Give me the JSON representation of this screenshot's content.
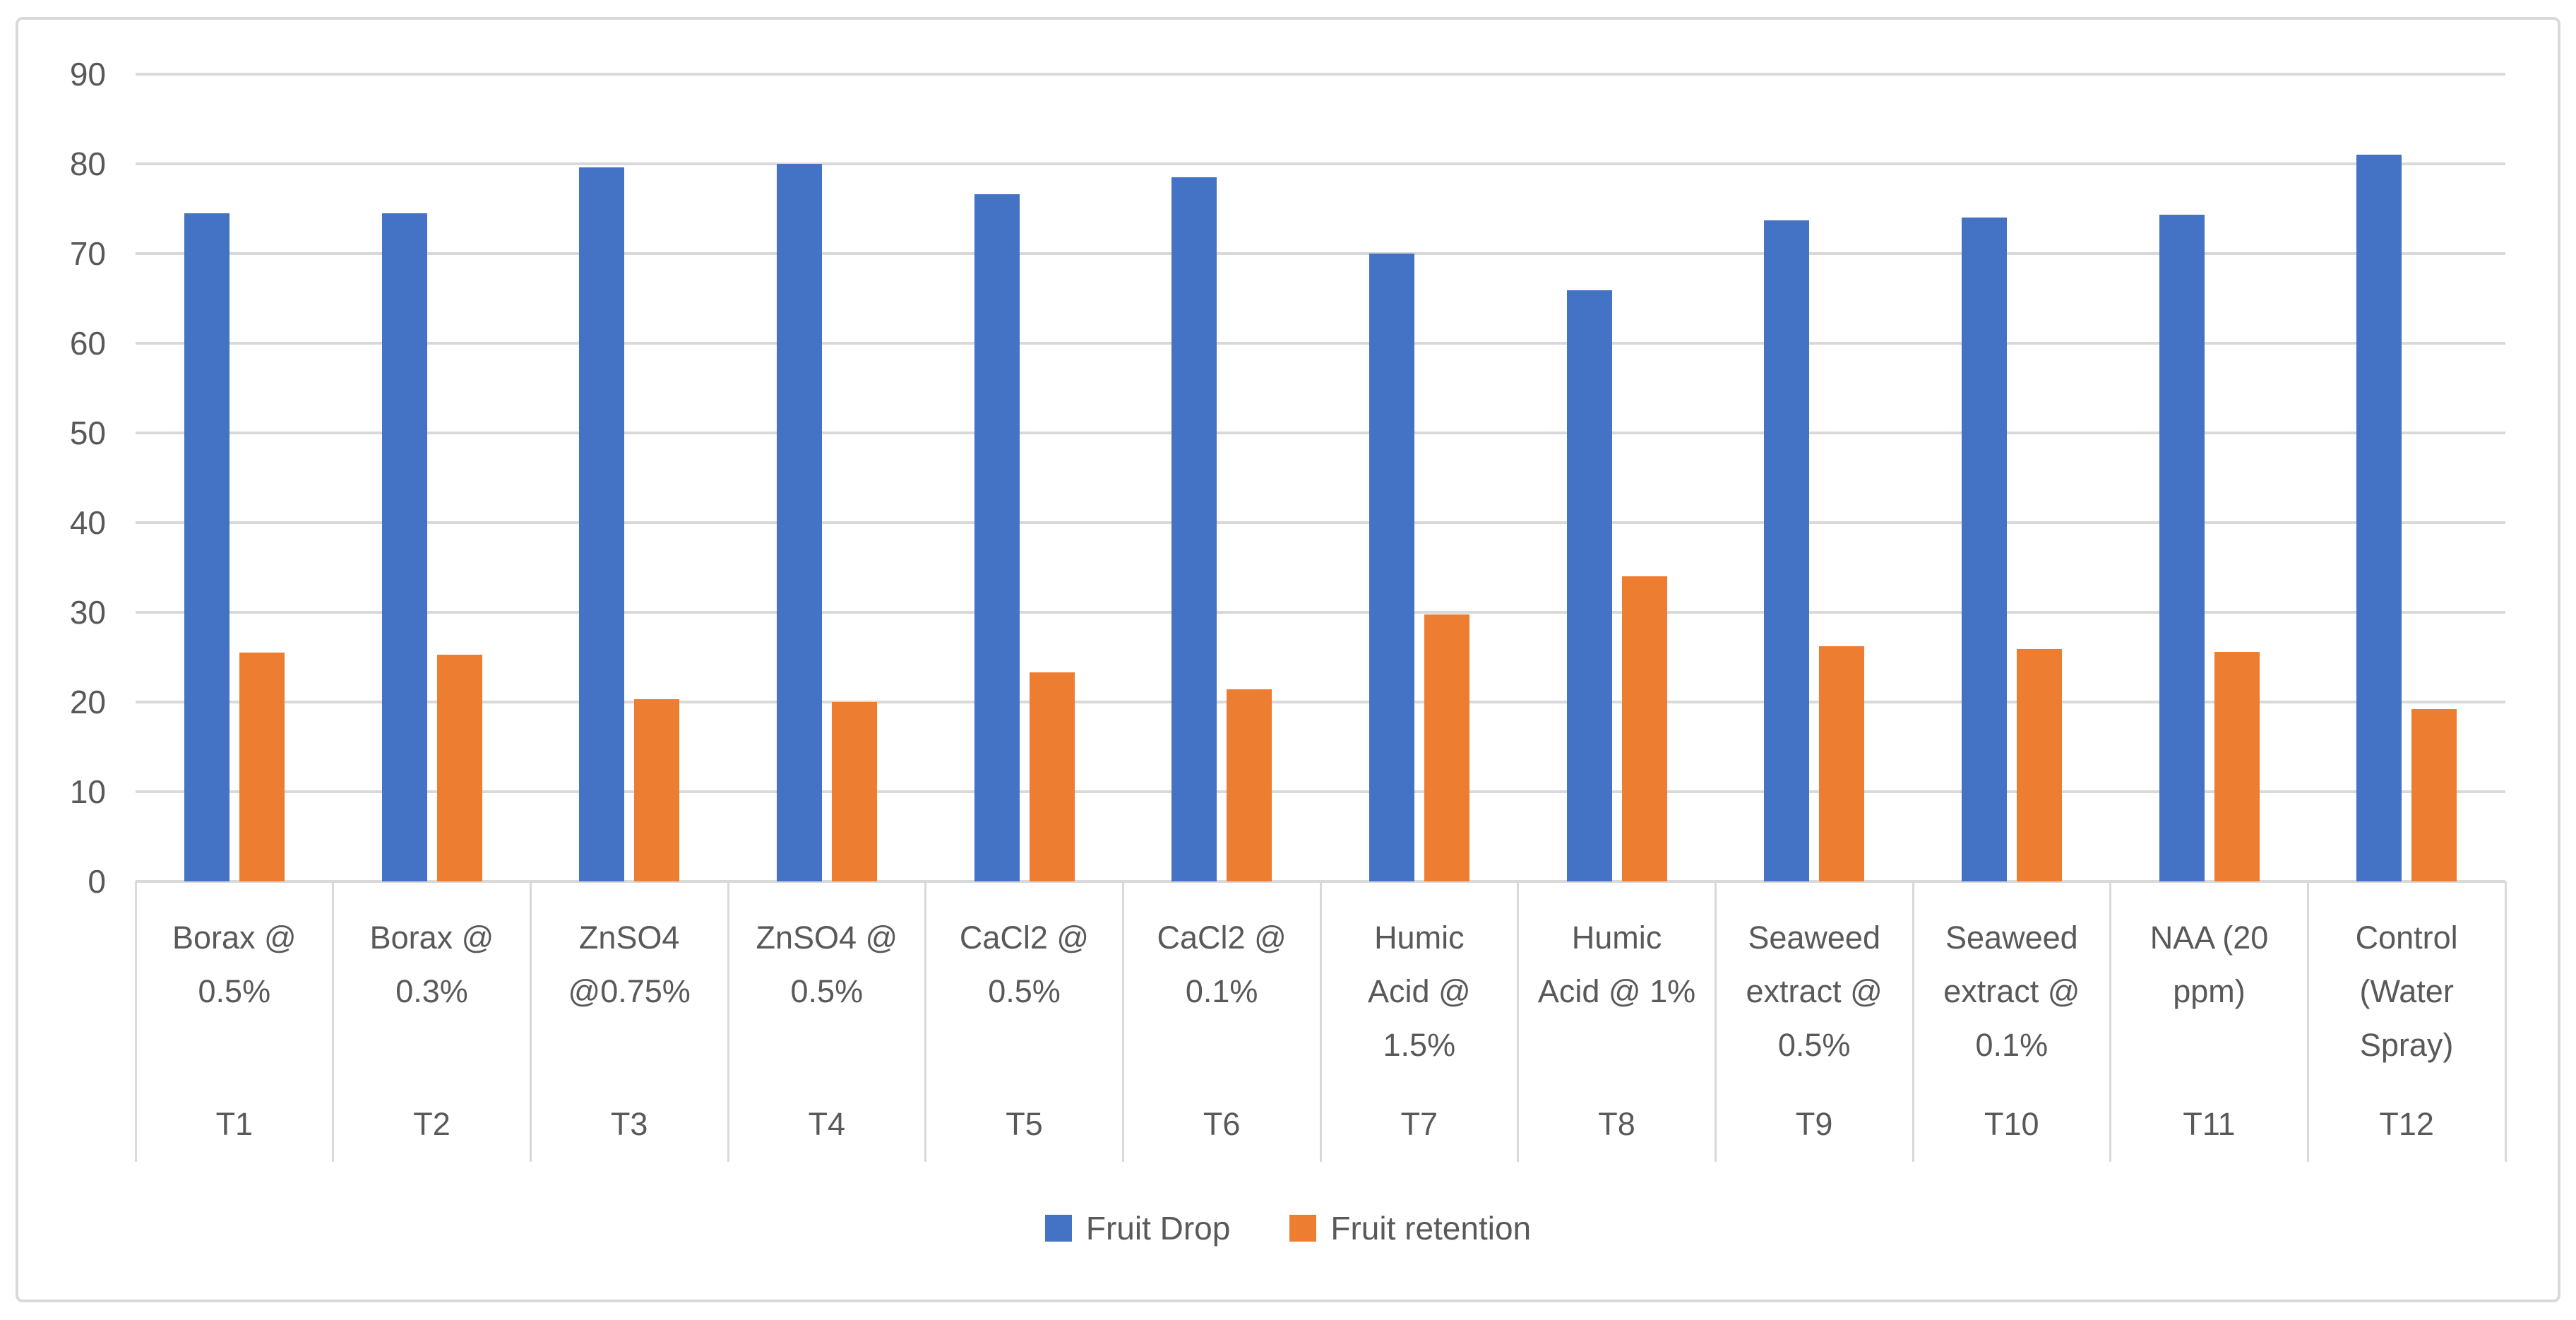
{
  "chart": {
    "background_color": "#FFFFFF",
    "frame_border_color": "#D9D9D9",
    "gridline_color": "#D9D9D9",
    "axis_text_color": "#595959",
    "fruit_drop_color": "#4472C4",
    "fruit_retention_color": "#ED7D31"
  },
  "chart_data": {
    "type": "bar",
    "title": "",
    "grid": true,
    "legend_position": "bottom",
    "y_axis": {
      "min": 0,
      "max": 90,
      "step": 10,
      "tick_labels": [
        "0",
        "10",
        "20",
        "30",
        "40",
        "50",
        "60",
        "70",
        "80",
        "90"
      ]
    },
    "categories": [
      {
        "treatment": "Borax @ 0.5%",
        "label_lines": [
          "Borax @",
          "0.5%"
        ],
        "code": "T1"
      },
      {
        "treatment": "Borax @ 0.3%",
        "label_lines": [
          "Borax @",
          "0.3%"
        ],
        "code": "T2"
      },
      {
        "treatment": "ZnSO4 @0.75%",
        "label_lines": [
          "ZnSO4",
          "@0.75%"
        ],
        "code": "T3"
      },
      {
        "treatment": "ZnSO4 @ 0.5%",
        "label_lines": [
          "ZnSO4 @",
          "0.5%"
        ],
        "code": "T4"
      },
      {
        "treatment": "CaCl2 @ 0.5%",
        "label_lines": [
          "CaCl2 @",
          "0.5%"
        ],
        "code": "T5"
      },
      {
        "treatment": "CaCl2 @ 0.1%",
        "label_lines": [
          "CaCl2 @",
          "0.1%"
        ],
        "code": "T6"
      },
      {
        "treatment": "Humic Acid @ 1.5%",
        "label_lines": [
          "Humic",
          "Acid @",
          "1.5%"
        ],
        "code": "T7"
      },
      {
        "treatment": "Humic Acid @ 1%",
        "label_lines": [
          "Humic",
          "Acid @ 1%"
        ],
        "code": "T8"
      },
      {
        "treatment": "Seaweed extract @ 0.5%",
        "label_lines": [
          "Seaweed",
          "extract @",
          "0.5%"
        ],
        "code": "T9"
      },
      {
        "treatment": "Seaweed extract @ 0.1%",
        "label_lines": [
          "Seaweed",
          "extract @",
          "0.1%"
        ],
        "code": "T10"
      },
      {
        "treatment": "NAA (20 ppm)",
        "label_lines": [
          "NAA (20",
          "ppm)"
        ],
        "code": "T11"
      },
      {
        "treatment": "Control (Water Spray)",
        "label_lines": [
          "Control",
          "(Water",
          "Spray)"
        ],
        "code": "T12"
      }
    ],
    "series": [
      {
        "name": "Fruit Drop",
        "color": "#4472C4",
        "values": [
          74.5,
          74.5,
          79.6,
          80,
          76.6,
          78.5,
          70,
          65.9,
          73.7,
          74,
          74.3,
          81
        ]
      },
      {
        "name": "Fruit retention",
        "color": "#ED7D31",
        "values": [
          25.5,
          25.3,
          20.3,
          20,
          23.3,
          21.4,
          29.8,
          34,
          26.2,
          25.9,
          25.6,
          19.2
        ]
      }
    ]
  }
}
